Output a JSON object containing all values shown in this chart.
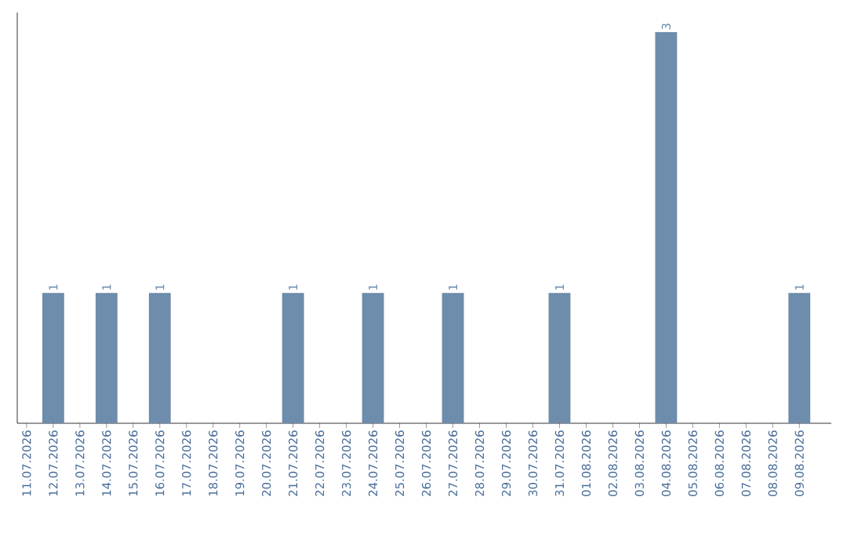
{
  "chart_data": {
    "type": "bar",
    "categories": [
      "11.07.2026",
      "12.07.2026",
      "13.07.2026",
      "14.07.2026",
      "15.07.2026",
      "16.07.2026",
      "17.07.2026",
      "18.07.2026",
      "19.07.2026",
      "20.07.2026",
      "21.07.2026",
      "22.07.2026",
      "23.07.2026",
      "24.07.2026",
      "25.07.2026",
      "26.07.2026",
      "27.07.2026",
      "28.07.2026",
      "29.07.2026",
      "30.07.2026",
      "31.07.2026",
      "01.08.2026",
      "02.08.2026",
      "03.08.2026",
      "04.08.2026",
      "05.08.2026",
      "06.08.2026",
      "07.08.2026",
      "08.08.2026",
      "09.08.2026"
    ],
    "values": [
      0,
      1,
      0,
      1,
      0,
      1,
      0,
      0,
      0,
      0,
      1,
      0,
      0,
      1,
      0,
      0,
      1,
      0,
      0,
      0,
      1,
      0,
      0,
      0,
      3,
      0,
      0,
      0,
      0,
      1
    ],
    "value_labels": [
      null,
      "1",
      null,
      "1",
      null,
      "1",
      null,
      null,
      null,
      null,
      "1",
      null,
      null,
      "1",
      null,
      null,
      "1",
      null,
      null,
      null,
      "1",
      null,
      null,
      null,
      "3",
      null,
      null,
      null,
      null,
      "1"
    ],
    "color": "#6e8cab",
    "ylim": [
      0,
      3.15
    ],
    "tick_labels": "x"
  }
}
